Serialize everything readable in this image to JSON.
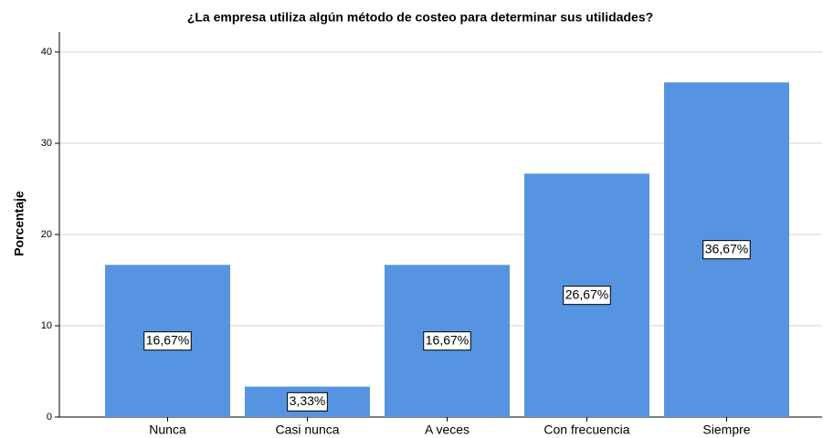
{
  "chart_data": {
    "type": "bar",
    "title": "¿La empresa utiliza algún método de costeo para determinar sus utilidades?",
    "y_label": "Porcentaje",
    "categories": [
      "Nunca",
      "Casi nunca",
      "A veces",
      "Con frecuencia",
      "Siempre"
    ],
    "values": [
      16.67,
      3.33,
      16.67,
      26.67,
      36.67
    ],
    "value_labels": [
      "16,67%",
      "3,33%",
      "16,67%",
      "26,67%",
      "36,67%"
    ],
    "color": "#5694e2",
    "ylim": [
      0,
      42.2
    ],
    "yticks": [
      0,
      10,
      20,
      30,
      40
    ],
    "grid": true
  }
}
